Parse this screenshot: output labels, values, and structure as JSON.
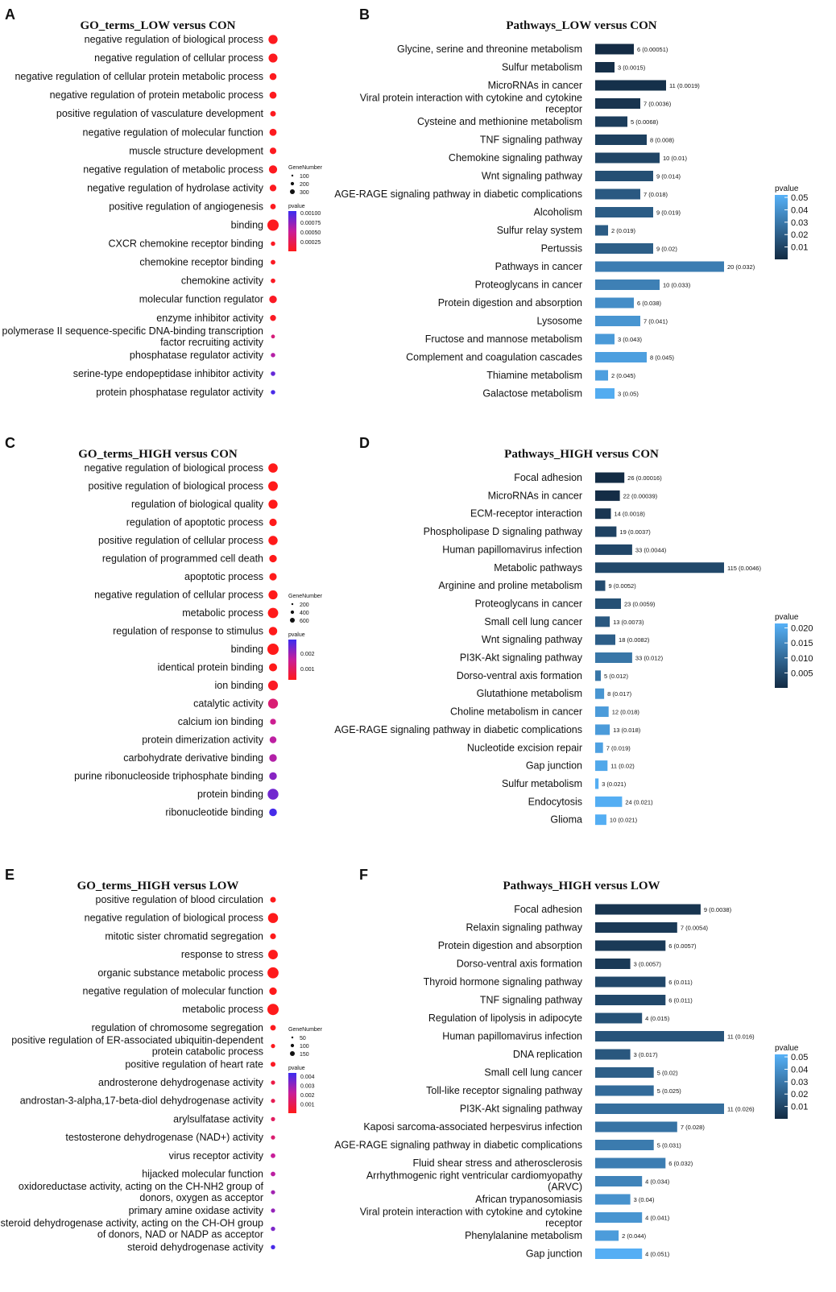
{
  "chart_data": [
    {
      "panel": "A",
      "type": "scatter",
      "title": "GO_terms_LOW versus CON",
      "terms": [
        {
          "label": "negative regulation of biological process",
          "genes": 280,
          "p": 3e-05
        },
        {
          "label": "negative regulation of cellular process",
          "genes": 260,
          "p": 3e-05
        },
        {
          "label": "negative regulation of cellular protein metabolic process",
          "genes": 110,
          "p": 3e-05
        },
        {
          "label": "negative regulation of protein metabolic process",
          "genes": 115,
          "p": 3e-05
        },
        {
          "label": "positive regulation of vasculature development",
          "genes": 45,
          "p": 3e-05
        },
        {
          "label": "negative regulation of molecular function",
          "genes": 120,
          "p": 3e-05
        },
        {
          "label": "muscle structure development",
          "genes": 90,
          "p": 3e-05
        },
        {
          "label": "negative regulation of metabolic process",
          "genes": 200,
          "p": 3e-05
        },
        {
          "label": "negative regulation of hydrolase activity",
          "genes": 95,
          "p": 3e-05
        },
        {
          "label": "positive regulation of angiogenesis",
          "genes": 40,
          "p": 3e-05
        },
        {
          "label": "binding",
          "genes": 520,
          "p": 3e-05
        },
        {
          "label": "CXCR chemokine receptor binding",
          "genes": 12,
          "p": 5e-05
        },
        {
          "label": "chemokine receptor binding",
          "genes": 18,
          "p": 5e-05
        },
        {
          "label": "chemokine activity",
          "genes": 16,
          "p": 5e-05
        },
        {
          "label": "molecular function regulator",
          "genes": 150,
          "p": 5e-05
        },
        {
          "label": "enzyme inhibitor activity",
          "genes": 60,
          "p": 5e-05
        },
        {
          "label": "RNA polymerase II sequence-specific DNA-binding transcription factor recruiting activity",
          "genes": 3,
          "p": 0.0004
        },
        {
          "label": "phosphatase regulator activity",
          "genes": 12,
          "p": 0.0006
        },
        {
          "label": "serine-type endopeptidase inhibitor activity",
          "genes": 14,
          "p": 0.0009
        },
        {
          "label": "protein phosphatase regulator activity",
          "genes": 11,
          "p": 0.001
        }
      ],
      "legend": {
        "size_title": "GeneNumber",
        "size_ticks": [
          "100",
          "200",
          "300"
        ],
        "size_values": [
          100,
          200,
          300
        ],
        "color_title": "pvalue",
        "color_ticks": [
          "0.00100",
          "0.00075",
          "0.00050",
          "0.00025"
        ],
        "color_values": [
          0.001,
          0.00075,
          0.0005,
          0.00025
        ],
        "pmin": 1e-05,
        "pmax": 0.00105,
        "gmax": 520
      }
    },
    {
      "panel": "B",
      "type": "bar",
      "title": "Pathways_LOW versus CON",
      "categories": [
        "Glycine, serine and threonine metabolism",
        "Sulfur metabolism",
        "MicroRNAs in cancer",
        "Viral protein interaction with cytokine and cytokine receptor",
        "Cysteine and methionine metabolism",
        "TNF signaling pathway",
        "Chemokine signaling pathway",
        "Wnt signaling pathway",
        "AGE-RAGE signaling pathway in diabetic complications",
        "Alcoholism",
        "Sulfur relay system",
        "Pertussis",
        "Pathways in cancer",
        "Proteoglycans in cancer",
        "Protein digestion and absorption",
        "Lysosome",
        "Fructose and mannose metabolism",
        "Complement and coagulation cascades",
        "Thiamine metabolism",
        "Galactose metabolism"
      ],
      "values": [
        6,
        3,
        11,
        7,
        5,
        8,
        10,
        9,
        7,
        9,
        2,
        9,
        20,
        10,
        6,
        7,
        3,
        8,
        2,
        3
      ],
      "pvalues": [
        0.00051,
        0.0015,
        0.0019,
        0.0036,
        0.0068,
        0.008,
        0.01,
        0.014,
        0.018,
        0.019,
        0.019,
        0.02,
        0.032,
        0.033,
        0.038,
        0.041,
        0.043,
        0.045,
        0.045,
        0.05
      ],
      "bar_labels": [
        "6 (0.00051)",
        "3 (0.0015)",
        "11 (0.0019)",
        "7 (0.0036)",
        "5 (0.0068)",
        "8 (0.008)",
        "10 (0.01)",
        "9 (0.014)",
        "7 (0.018)",
        "9 (0.019)",
        "2 (0.019)",
        "9 (0.02)",
        "20 (0.032)",
        "10 (0.033)",
        "6 (0.038)",
        "7 (0.041)",
        "3 (0.043)",
        "8 (0.045)",
        "2 (0.045)",
        "3 (0.05)"
      ],
      "legend": {
        "title": "pvalue",
        "ticks": [
          "0.05",
          "0.04",
          "0.03",
          "0.02",
          "0.01"
        ],
        "tick_values": [
          0.05,
          0.04,
          0.03,
          0.02,
          0.01
        ],
        "pmin": 0.0,
        "pmax": 0.052
      },
      "xmax": 20
    },
    {
      "panel": "C",
      "type": "scatter",
      "title": "GO_terms_HIGH versus CON",
      "terms": [
        {
          "label": "negative regulation of biological process",
          "genes": 520,
          "p": 0.0003
        },
        {
          "label": "positive regulation of biological process",
          "genes": 560,
          "p": 0.0003
        },
        {
          "label": "regulation of biological quality",
          "genes": 480,
          "p": 0.0003
        },
        {
          "label": "regulation of apoptotic process",
          "genes": 250,
          "p": 0.0003
        },
        {
          "label": "positive regulation of cellular process",
          "genes": 500,
          "p": 0.0003
        },
        {
          "label": "regulation of programmed cell death",
          "genes": 255,
          "p": 0.0003
        },
        {
          "label": "apoptotic process",
          "genes": 240,
          "p": 0.0003
        },
        {
          "label": "negative regulation of cellular process",
          "genes": 470,
          "p": 0.0003
        },
        {
          "label": "metabolic process",
          "genes": 700,
          "p": 0.0003
        },
        {
          "label": "regulation of response to stimulus",
          "genes": 380,
          "p": 0.0003
        },
        {
          "label": "binding",
          "genes": 900,
          "p": 0.0003
        },
        {
          "label": "identical protein binding",
          "genes": 330,
          "p": 0.0003
        },
        {
          "label": "ion binding",
          "genes": 600,
          "p": 0.0004
        },
        {
          "label": "catalytic activity",
          "genes": 620,
          "p": 0.0012
        },
        {
          "label": "calcium ion binding",
          "genes": 100,
          "p": 0.0015
        },
        {
          "label": "protein dimerization activity",
          "genes": 180,
          "p": 0.0017
        },
        {
          "label": "carbohydrate derivative binding",
          "genes": 260,
          "p": 0.0018
        },
        {
          "label": "purine ribonucleoside triphosphate binding",
          "genes": 270,
          "p": 0.0022
        },
        {
          "label": "protein binding",
          "genes": 800,
          "p": 0.0024
        },
        {
          "label": "ribonucleotide binding",
          "genes": 280,
          "p": 0.0028
        }
      ],
      "legend": {
        "size_title": "GeneNumber",
        "size_ticks": [
          "200",
          "400",
          "600"
        ],
        "size_values": [
          200,
          400,
          600
        ],
        "color_title": "pvalue",
        "color_ticks": [
          "0.002",
          "0.001"
        ],
        "color_values": [
          0.002,
          0.001
        ],
        "pmin": 0.0003,
        "pmax": 0.0029,
        "gmax": 900
      }
    },
    {
      "panel": "D",
      "type": "bar",
      "title": "Pathways_HIGH versus CON",
      "categories": [
        "Focal adhesion",
        "MicroRNAs in cancer",
        "ECM-receptor interaction",
        "Phospholipase D signaling pathway",
        "Human papillomavirus infection",
        "Metabolic pathways",
        "Arginine and proline metabolism",
        "Proteoglycans in cancer",
        "Small cell lung cancer",
        "Wnt signaling pathway",
        "PI3K-Akt signaling pathway",
        "Dorso-ventral axis formation",
        "Glutathione metabolism",
        "Choline metabolism in cancer",
        "AGE-RAGE signaling pathway in diabetic complications",
        "Nucleotide excision repair",
        "Gap junction",
        "Sulfur metabolism",
        "Endocytosis",
        "Glioma"
      ],
      "values": [
        26,
        22,
        14,
        19,
        33,
        115,
        9,
        23,
        13,
        18,
        33,
        5,
        8,
        12,
        13,
        7,
        11,
        3,
        24,
        10
      ],
      "pvalues": [
        0.00016,
        0.00039,
        0.0018,
        0.0037,
        0.0044,
        0.0046,
        0.0052,
        0.0059,
        0.0073,
        0.0082,
        0.012,
        0.012,
        0.017,
        0.018,
        0.018,
        0.019,
        0.02,
        0.021,
        0.021,
        0.021
      ],
      "bar_labels": [
        "26 (0.00016)",
        "22 (0.00039)",
        "14 (0.0018)",
        "19 (0.0037)",
        "33 (0.0044)",
        "115 (0.0046)",
        "9 (0.0052)",
        "23 (0.0059)",
        "13 (0.0073)",
        "18 (0.0082)",
        "33 (0.012)",
        "5 (0.012)",
        "8 (0.017)",
        "12 (0.018)",
        "13 (0.018)",
        "7 (0.019)",
        "11 (0.02)",
        "3 (0.021)",
        "24 (0.021)",
        "10 (0.021)"
      ],
      "legend": {
        "title": "pvalue",
        "ticks": [
          "0.020",
          "0.015",
          "0.010",
          "0.005"
        ],
        "tick_values": [
          0.02,
          0.015,
          0.01,
          0.005
        ],
        "pmin": 0.0,
        "pmax": 0.0215
      },
      "xmax": 115
    },
    {
      "panel": "E",
      "type": "scatter",
      "title": "GO_terms_HIGH versus LOW",
      "terms": [
        {
          "label": "positive regulation of blood circulation",
          "genes": 20,
          "p": 5e-05
        },
        {
          "label": "negative regulation of biological process",
          "genes": 150,
          "p": 5e-05
        },
        {
          "label": "mitotic sister chromatid segregation",
          "genes": 22,
          "p": 5e-05
        },
        {
          "label": "response to stress",
          "genes": 130,
          "p": 5e-05
        },
        {
          "label": "organic substance metabolic process",
          "genes": 200,
          "p": 5e-05
        },
        {
          "label": "negative regulation of molecular function",
          "genes": 60,
          "p": 5e-05
        },
        {
          "label": "metabolic process",
          "genes": 210,
          "p": 5e-05
        },
        {
          "label": "regulation of chromosome segregation",
          "genes": 18,
          "p": 0.0001
        },
        {
          "label": "positive regulation of ER-associated ubiquitin-dependent protein catabolic process",
          "genes": 3,
          "p": 0.0001
        },
        {
          "label": "positive regulation of heart rate",
          "genes": 9,
          "p": 0.0002
        },
        {
          "label": "androsterone dehydrogenase activity",
          "genes": 3,
          "p": 0.0008
        },
        {
          "label": "androstan-3-alpha,17-beta-diol dehydrogenase activity",
          "genes": 3,
          "p": 0.001
        },
        {
          "label": "arylsulfatase activity",
          "genes": 3,
          "p": 0.0012
        },
        {
          "label": "testosterone dehydrogenase (NAD+) activity",
          "genes": 3,
          "p": 0.0015
        },
        {
          "label": "virus receptor activity",
          "genes": 7,
          "p": 0.0022
        },
        {
          "label": "hijacked molecular function",
          "genes": 7,
          "p": 0.0024
        },
        {
          "label": "oxidoreductase activity, acting on the CH-NH2 group of donors, oxygen as acceptor",
          "genes": 3,
          "p": 0.0028
        },
        {
          "label": "primary amine oxidase activity",
          "genes": 3,
          "p": 0.003
        },
        {
          "label": "steroid dehydrogenase activity, acting on the CH-OH group of donors, NAD or NADP as acceptor",
          "genes": 4,
          "p": 0.0034
        },
        {
          "label": "steroid dehydrogenase activity",
          "genes": 4,
          "p": 0.0042
        }
      ],
      "legend": {
        "size_title": "GeneNumber",
        "size_ticks": [
          "50",
          "100",
          "150"
        ],
        "size_values": [
          50,
          100,
          150
        ],
        "color_title": "pvalue",
        "color_ticks": [
          "0.004",
          "0.003",
          "0.002",
          "0.001"
        ],
        "color_values": [
          0.004,
          0.003,
          0.002,
          0.001
        ],
        "pmin": 3e-05,
        "pmax": 0.0044,
        "gmax": 210
      }
    },
    {
      "panel": "F",
      "type": "bar",
      "title": "Pathways_HIGH versus LOW",
      "categories": [
        "Focal adhesion",
        "Relaxin signaling pathway",
        "Protein digestion and absorption",
        "Dorso-ventral axis formation",
        "Thyroid hormone signaling pathway",
        "TNF signaling pathway",
        "Regulation of lipolysis in adipocyte",
        "Human papillomavirus infection",
        "DNA replication",
        "Small cell lung cancer",
        "Toll-like receptor signaling pathway",
        "PI3K-Akt signaling pathway",
        "Kaposi sarcoma-associated herpesvirus infection",
        "AGE-RAGE signaling pathway in diabetic complications",
        "Fluid shear stress and atherosclerosis",
        "Arrhythmogenic right ventricular cardiomyopathy (ARVC)",
        "African trypanosomiasis",
        "Viral protein interaction with cytokine and cytokine receptor",
        "Phenylalanine metabolism",
        "Gap junction"
      ],
      "values": [
        9,
        7,
        6,
        3,
        6,
        6,
        4,
        11,
        3,
        5,
        5,
        11,
        7,
        5,
        6,
        4,
        3,
        4,
        2,
        4
      ],
      "pvalues": [
        0.0038,
        0.0054,
        0.0057,
        0.0057,
        0.011,
        0.011,
        0.015,
        0.016,
        0.017,
        0.02,
        0.025,
        0.026,
        0.028,
        0.031,
        0.032,
        0.034,
        0.04,
        0.041,
        0.044,
        0.051
      ],
      "bar_labels": [
        "9 (0.0038)",
        "7 (0.0054)",
        "6 (0.0057)",
        "3 (0.0057)",
        "6 (0.011)",
        "6 (0.011)",
        "4 (0.015)",
        "11 (0.016)",
        "3 (0.017)",
        "5 (0.02)",
        "5 (0.025)",
        "11 (0.026)",
        "7 (0.028)",
        "5 (0.031)",
        "6 (0.032)",
        "4 (0.034)",
        "3 (0.04)",
        "4 (0.041)",
        "2 (0.044)",
        "4 (0.051)"
      ],
      "legend": {
        "title": "pvalue",
        "ticks": [
          "0.05",
          "0.04",
          "0.03",
          "0.02",
          "0.01"
        ],
        "tick_values": [
          0.05,
          0.04,
          0.03,
          0.02,
          0.01
        ],
        "pmin": 0.0,
        "pmax": 0.052
      },
      "xmax": 11
    }
  ]
}
